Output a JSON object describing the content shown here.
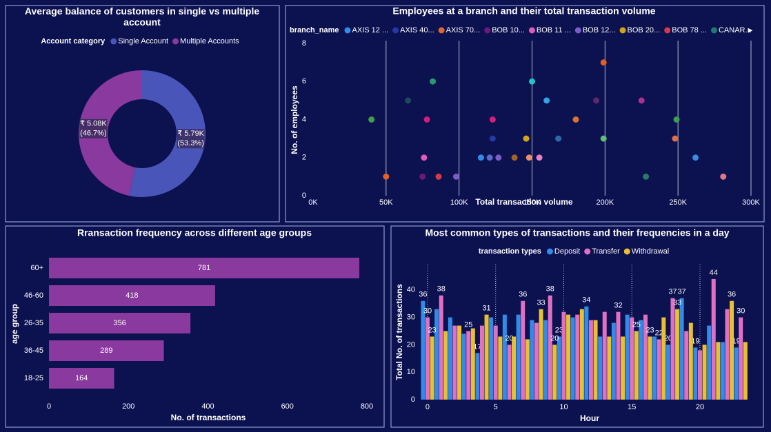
{
  "chart_data": [
    {
      "type": "donut",
      "title": "Average balance of customers in single vs multiple account",
      "legend_title": "Account category",
      "categories": [
        "Single Account",
        "Multiple Accounts"
      ],
      "colors": [
        "#4a55b9",
        "#8a3a9e"
      ],
      "values": [
        5790,
        5080
      ],
      "value_labels": [
        "₹ 5.79K",
        "₹ 5.08K"
      ],
      "percents": [
        53.3,
        46.7
      ],
      "percent_labels": [
        "(53.3%)",
        "(46.7%)"
      ]
    },
    {
      "type": "scatter",
      "title": "Employees at a branch and their total transaction volume",
      "legend_title": "branch_name",
      "legend_items": [
        {
          "name": "AXIS 12 ...",
          "color": "#2f8ce8"
        },
        {
          "name": "AXIS 40...",
          "color": "#2438a6"
        },
        {
          "name": "AXIS 70...",
          "color": "#e0662e"
        },
        {
          "name": "BOB 10...",
          "color": "#6b1a7c"
        },
        {
          "name": "BOB 11 ...",
          "color": "#e05cb8"
        },
        {
          "name": "BOB 12...",
          "color": "#7a5cc4"
        },
        {
          "name": "BOB 20...",
          "color": "#d4a418"
        },
        {
          "name": "BOB 78 ...",
          "color": "#d63a48"
        },
        {
          "name": "CANAR...",
          "color": "#1e7a72"
        }
      ],
      "x": [
        40000,
        50000,
        65000,
        75000,
        76000,
        78000,
        82000,
        86000,
        98000,
        115000,
        121000,
        123000,
        123000,
        127000,
        138000,
        146000,
        148000,
        150000,
        155000,
        160000,
        168000,
        180000,
        194000,
        199000,
        199000,
        225000,
        228000,
        248000,
        249000,
        262000,
        281000
      ],
      "values": [
        4,
        1,
        5,
        1,
        2,
        4,
        6,
        1,
        1,
        2,
        2,
        3,
        4,
        2,
        2,
        3,
        2,
        6,
        2,
        5,
        3,
        4,
        5,
        7,
        3,
        5,
        1,
        3,
        4,
        2,
        1
      ],
      "point_colors": [
        "#3fa04a",
        "#e0602a",
        "#1b4a5c",
        "#6b1a7c",
        "#e05cb8",
        "#d0207a",
        "#2a9a70",
        "#d63a48",
        "#7a5cc4",
        "#2f8ce8",
        "#5a6ad0",
        "#2438a6",
        "#d0207a",
        "#7a5cc4",
        "#a06428",
        "#d4a418",
        "#e8906a",
        "#20c4c4",
        "#e880c4",
        "#30a4e4",
        "#2a6aa8",
        "#e07030",
        "#5a2a6a",
        "#e06020",
        "#60c070",
        "#b03090",
        "#2a7a6a",
        "#e07040",
        "#3aa050",
        "#3a8ae0",
        "#e07888"
      ],
      "x_label": "Total transaction volume",
      "y_label": "No. of employees",
      "xlim": [
        0,
        300000
      ],
      "xticks": [
        {
          "value": 0,
          "label": "0K"
        },
        {
          "value": 50000,
          "label": "50K"
        },
        {
          "value": 100000,
          "label": "100K"
        },
        {
          "value": 150000,
          "label": "150K"
        },
        {
          "value": 200000,
          "label": "200K"
        },
        {
          "value": 250000,
          "label": "250K"
        },
        {
          "value": 300000,
          "label": "300K"
        }
      ],
      "ylim": [
        0,
        8
      ],
      "yticks": [
        0,
        2,
        4,
        6,
        8
      ],
      "grid": true
    },
    {
      "type": "hbar",
      "title": "Rransaction frequency across different age groups",
      "categories": [
        "60+",
        "46-60",
        "26-35",
        "36-45",
        "18-25"
      ],
      "values": [
        781,
        418,
        356,
        289,
        164
      ],
      "color": "#8a3a9e",
      "x_label": "No. of transactions",
      "y_label": "age group",
      "xlim": [
        0,
        800
      ],
      "xticks": [
        0,
        200,
        400,
        600,
        800
      ]
    },
    {
      "type": "grouped_bar",
      "title": "Most common types of transactions and their frequencies in a day",
      "legend_title": "transaction types",
      "x": [
        0,
        1,
        2,
        3,
        4,
        5,
        6,
        7,
        8,
        9,
        10,
        11,
        12,
        13,
        14,
        15,
        16,
        17,
        18,
        19,
        20,
        21,
        22,
        23
      ],
      "series": [
        {
          "name": "Deposit",
          "color": "#2f8ce8",
          "values": [
            36,
            33,
            30,
            24,
            17,
            30,
            31,
            31,
            29,
            29,
            23,
            30,
            34,
            23,
            28,
            31,
            29,
            23,
            20,
            37,
            19,
            27,
            21,
            19
          ],
          "value_labels": [
            36,
            null,
            null,
            null,
            17,
            null,
            null,
            null,
            null,
            null,
            23,
            null,
            34,
            null,
            null,
            null,
            null,
            null,
            20,
            37,
            19,
            null,
            null,
            19
          ]
        },
        {
          "name": "Transfer",
          "color": "#e070c4",
          "values": [
            30,
            38,
            27,
            25,
            27,
            27,
            20,
            36,
            28,
            38,
            32,
            31,
            29,
            32,
            32,
            30,
            31,
            22,
            37,
            25,
            18,
            44,
            33,
            30
          ],
          "value_labels": [
            30,
            38,
            null,
            25,
            null,
            null,
            20,
            36,
            null,
            38,
            null,
            null,
            null,
            null,
            32,
            null,
            null,
            22,
            37,
            null,
            null,
            44,
            null,
            30
          ]
        },
        {
          "name": "Withdrawal",
          "color": "#e8c030",
          "values": [
            23,
            25,
            27,
            26,
            31,
            23,
            23,
            22,
            33,
            20,
            31,
            33,
            29,
            23,
            23,
            25,
            23,
            30,
            33,
            28,
            20,
            21,
            36,
            21
          ],
          "value_labels": [
            23,
            null,
            null,
            null,
            31,
            null,
            null,
            null,
            33,
            20,
            null,
            null,
            null,
            null,
            null,
            25,
            23,
            null,
            33,
            null,
            null,
            null,
            36,
            null
          ]
        }
      ],
      "x_label": "Hour",
      "y_label": "Total No. of transactions",
      "xlim": [
        -0.5,
        23.5
      ],
      "xticks": [
        0,
        5,
        10,
        15,
        20
      ],
      "ylim": [
        0,
        48
      ],
      "yticks": [
        0,
        10,
        20,
        30,
        40
      ]
    }
  ]
}
